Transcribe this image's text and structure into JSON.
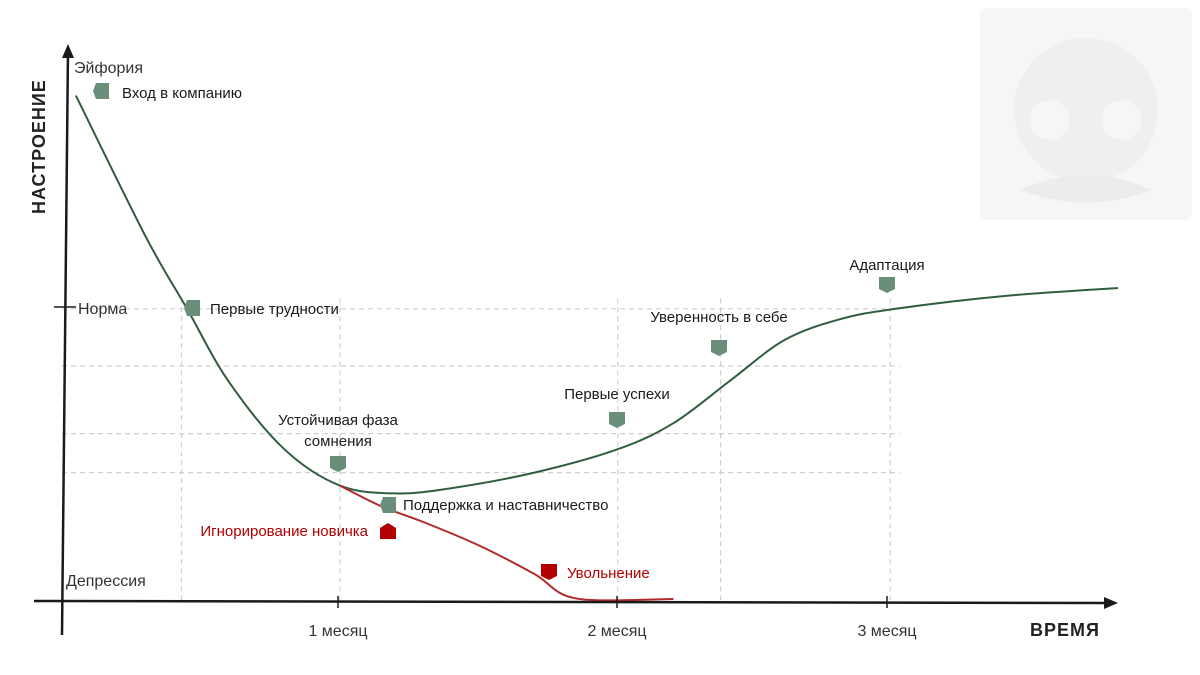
{
  "chart_data": {
    "type": "line",
    "ylabel": "НАСТРОЕНИЕ",
    "xlabel": "ВРЕМЯ",
    "x_ticks": [
      {
        "value": 1,
        "label": "1 месяц"
      },
      {
        "value": 2,
        "label": "2 месяц"
      },
      {
        "value": 3,
        "label": "3 месяц"
      }
    ],
    "y_levels": [
      {
        "value": 100,
        "label": "Эйфория"
      },
      {
        "value": 56,
        "label": "Норма"
      },
      {
        "value": 4,
        "label": "Депрессия"
      }
    ],
    "xlim": [
      0,
      3.8
    ],
    "ylim": [
      0,
      100
    ],
    "grid": true,
    "series": [
      {
        "color": "#2f5e3f",
        "points": [
          [
            0.05,
            97
          ],
          [
            0.3,
            70
          ],
          [
            0.45,
            56
          ],
          [
            0.6,
            42
          ],
          [
            0.8,
            29
          ],
          [
            1.0,
            22
          ],
          [
            1.2,
            20.5
          ],
          [
            1.4,
            21.5
          ],
          [
            1.7,
            24.5
          ],
          [
            2.0,
            29
          ],
          [
            2.2,
            34
          ],
          [
            2.4,
            42
          ],
          [
            2.6,
            50
          ],
          [
            2.8,
            54
          ],
          [
            3.0,
            56
          ],
          [
            3.4,
            58.5
          ],
          [
            3.8,
            60
          ]
        ]
      },
      {
        "color": "#b22a2a",
        "points": [
          [
            1.0,
            22
          ],
          [
            1.15,
            18
          ],
          [
            1.3,
            15
          ],
          [
            1.5,
            10.5
          ],
          [
            1.7,
            5
          ],
          [
            1.85,
            0.3
          ],
          [
            2.2,
            0.2
          ]
        ]
      }
    ],
    "annotations": [
      {
        "x": 0.14,
        "y": 92,
        "label": "Вход в компанию",
        "marker": "hexagon",
        "color": "#6b8e7a",
        "text_pos": "right"
      },
      {
        "x": 0.47,
        "y": 56,
        "label": "Первые трудности",
        "marker": "hexagon",
        "color": "#6b8e7a",
        "text_pos": "right"
      },
      {
        "x": 1.0,
        "y": 24.5,
        "label_lines": [
          "Устойчивая фаза",
          "сомнения"
        ],
        "marker": "pentagon",
        "color": "#6b8e7a",
        "text_pos": "above"
      },
      {
        "x": 1.18,
        "y": 17.5,
        "label": "Поддержка и наставничество",
        "marker": "hexagon",
        "color": "#6b8e7a",
        "text_pos": "right"
      },
      {
        "x": 2.0,
        "y": 32,
        "label": "Первые успехи",
        "marker": "pentagon",
        "color": "#6b8e7a",
        "text_pos": "above-left"
      },
      {
        "x": 2.37,
        "y": 45,
        "label": "Уверенность в себе",
        "marker": "pentagon",
        "color": "#6b8e7a",
        "text_pos": "above-left"
      },
      {
        "x": 2.98,
        "y": 58.5,
        "label": "Адаптация",
        "marker": "pentagon",
        "color": "#6b8e7a",
        "text_pos": "above"
      },
      {
        "x": 1.18,
        "y": 12.8,
        "label": "Игнорирование новичка",
        "marker": "house",
        "color": "#b30000",
        "text_pos": "left"
      },
      {
        "x": 1.75,
        "y": 5.5,
        "label": "Увольнение",
        "marker": "pentagon",
        "color": "#b30000",
        "text_pos": "right"
      }
    ]
  },
  "colors": {
    "axis": "#1a1a1a",
    "grid": "#cfcfcf",
    "green_line": "#2f5e3f",
    "red_line": "#b22a2a",
    "marker_green": "#6b8e7a",
    "marker_red": "#b30000",
    "watermark": "#f2f2f2"
  }
}
